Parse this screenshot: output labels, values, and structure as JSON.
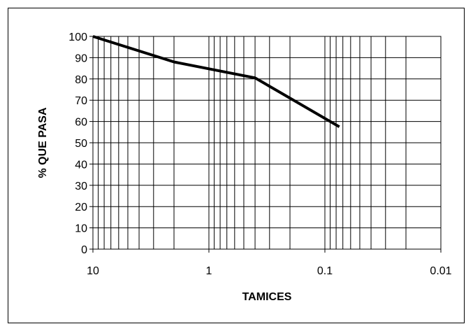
{
  "chart_data": {
    "type": "line",
    "xlabel": "TAMICES",
    "ylabel": "% QUE PASA",
    "x_scale": "log",
    "x_reversed": true,
    "xlim": [
      10,
      0.01
    ],
    "ylim": [
      0,
      100
    ],
    "grid": true,
    "y_ticks": [
      "0",
      "10",
      "20",
      "30",
      "40",
      "50",
      "60",
      "70",
      "80",
      "90",
      "100"
    ],
    "x_ticks": [
      "10",
      "1",
      "0.1",
      "0.01"
    ],
    "series": [
      {
        "x": [
          10,
          2.0,
          0.4,
          0.075
        ],
        "y": [
          100,
          88,
          80.5,
          57.5
        ]
      }
    ],
    "colors": {
      "line": "#000000",
      "grid": "#000000"
    }
  }
}
